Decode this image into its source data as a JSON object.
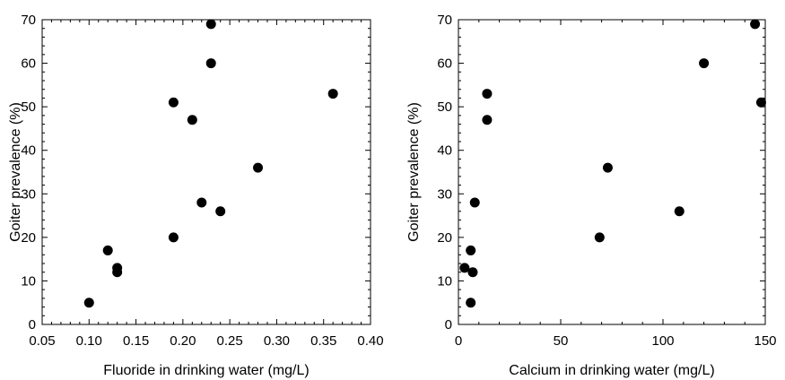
{
  "chart_data": [
    {
      "type": "scatter",
      "title": "",
      "xlabel": "Fluoride in drinking water (mg/L)",
      "ylabel": "Goiter prevalence (%)",
      "xlim": [
        0.05,
        0.4
      ],
      "ylim": [
        0,
        70
      ],
      "xticks": [
        0.05,
        0.1,
        0.15,
        0.2,
        0.25,
        0.3,
        0.35,
        0.4
      ],
      "xtick_labels": [
        "0.05",
        "0.10",
        "0.15",
        "0.20",
        "0.25",
        "0.30",
        "0.35",
        "0.40"
      ],
      "yticks": [
        0,
        10,
        20,
        30,
        40,
        50,
        60,
        70
      ],
      "ytick_labels": [
        "0",
        "10",
        "20",
        "30",
        "40",
        "50",
        "60",
        "70"
      ],
      "grid": false,
      "marker_color": "#000000",
      "points": [
        {
          "x": 0.1,
          "y": 5
        },
        {
          "x": 0.12,
          "y": 17
        },
        {
          "x": 0.13,
          "y": 13
        },
        {
          "x": 0.13,
          "y": 12
        },
        {
          "x": 0.19,
          "y": 20
        },
        {
          "x": 0.19,
          "y": 51
        },
        {
          "x": 0.21,
          "y": 47
        },
        {
          "x": 0.22,
          "y": 28
        },
        {
          "x": 0.23,
          "y": 69
        },
        {
          "x": 0.23,
          "y": 60
        },
        {
          "x": 0.24,
          "y": 26
        },
        {
          "x": 0.28,
          "y": 36
        },
        {
          "x": 0.36,
          "y": 53
        }
      ]
    },
    {
      "type": "scatter",
      "title": "",
      "xlabel": "Calcium in drinking water (mg/L)",
      "ylabel": "Goiter prevalence (%)",
      "xlim": [
        0,
        150
      ],
      "ylim": [
        0,
        70
      ],
      "xticks": [
        0,
        50,
        100,
        150
      ],
      "xtick_labels": [
        "0",
        "50",
        "100",
        "150"
      ],
      "yticks": [
        0,
        10,
        20,
        30,
        40,
        50,
        60,
        70
      ],
      "ytick_labels": [
        "0",
        "10",
        "20",
        "30",
        "40",
        "50",
        "60",
        "70"
      ],
      "grid": false,
      "marker_color": "#000000",
      "points": [
        {
          "x": 3,
          "y": 13
        },
        {
          "x": 6,
          "y": 17
        },
        {
          "x": 6,
          "y": 5
        },
        {
          "x": 7,
          "y": 12
        },
        {
          "x": 8,
          "y": 28
        },
        {
          "x": 14,
          "y": 53
        },
        {
          "x": 14,
          "y": 47
        },
        {
          "x": 69,
          "y": 20
        },
        {
          "x": 73,
          "y": 36
        },
        {
          "x": 108,
          "y": 26
        },
        {
          "x": 120,
          "y": 60
        },
        {
          "x": 145,
          "y": 69
        },
        {
          "x": 148,
          "y": 51
        }
      ]
    }
  ]
}
